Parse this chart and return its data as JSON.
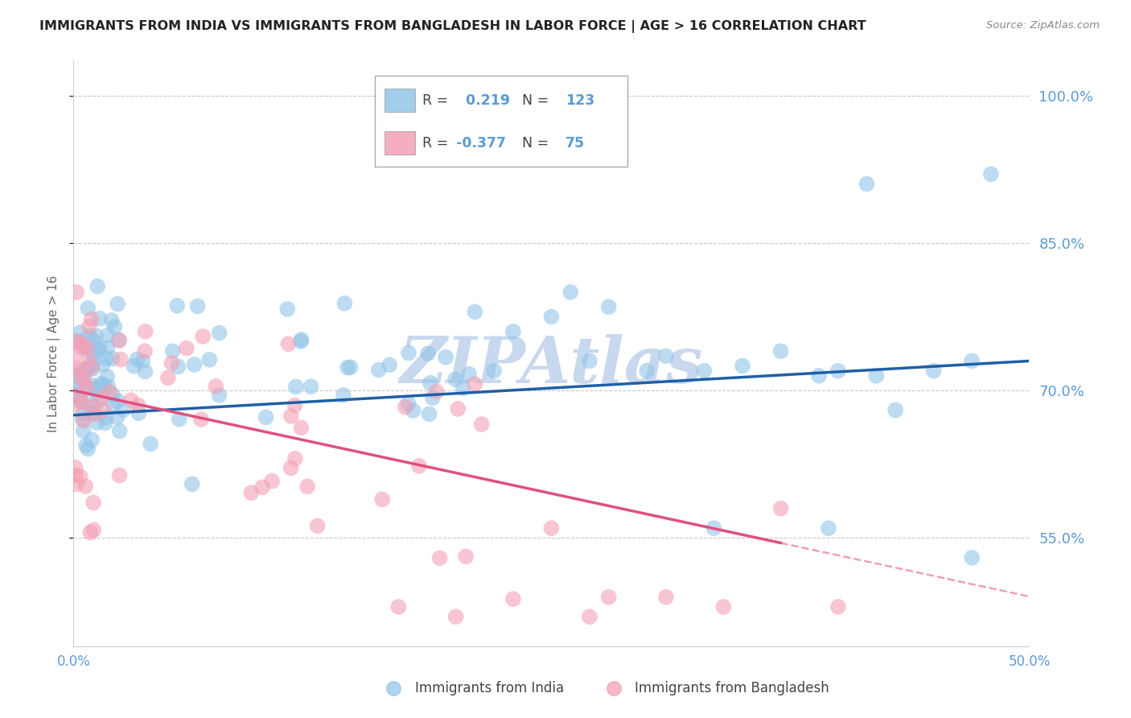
{
  "title": "IMMIGRANTS FROM INDIA VS IMMIGRANTS FROM BANGLADESH IN LABOR FORCE | AGE > 16 CORRELATION CHART",
  "source": "Source: ZipAtlas.com",
  "ylabel": "In Labor Force | Age > 16",
  "legend_india": "Immigrants from India",
  "legend_bangladesh": "Immigrants from Bangladesh",
  "india_R": 0.219,
  "india_N": 123,
  "bangladesh_R": -0.377,
  "bangladesh_N": 75,
  "color_india": "#92C5E8",
  "color_bangladesh": "#F4A0B5",
  "color_india_line": "#1F5FA6",
  "color_bangladesh_line": "#E05080",
  "xmin": 0.0,
  "xmax": 0.5,
  "ymin": 0.44,
  "ymax": 1.035,
  "ytick_show": [
    0.55,
    0.7,
    0.85,
    1.0
  ],
  "ytick_show_labels": [
    "55.0%",
    "70.0%",
    "85.0%",
    "100.0%"
  ],
  "watermark": "ZIPAtlas",
  "watermark_color": "#C8D8EE",
  "background_color": "#ffffff",
  "grid_color": "#C8C8C8",
  "axis_color": "#666666",
  "title_color": "#222222",
  "right_axis_color": "#5B9BD5",
  "bottom_axis_color": "#5B9BD5",
  "india_line_y0": 0.675,
  "india_line_y1": 0.73,
  "bang_line_y0": 0.7,
  "bang_line_y1": 0.545,
  "bang_solid_xend": 0.37,
  "bang_dash_xend": 0.5
}
